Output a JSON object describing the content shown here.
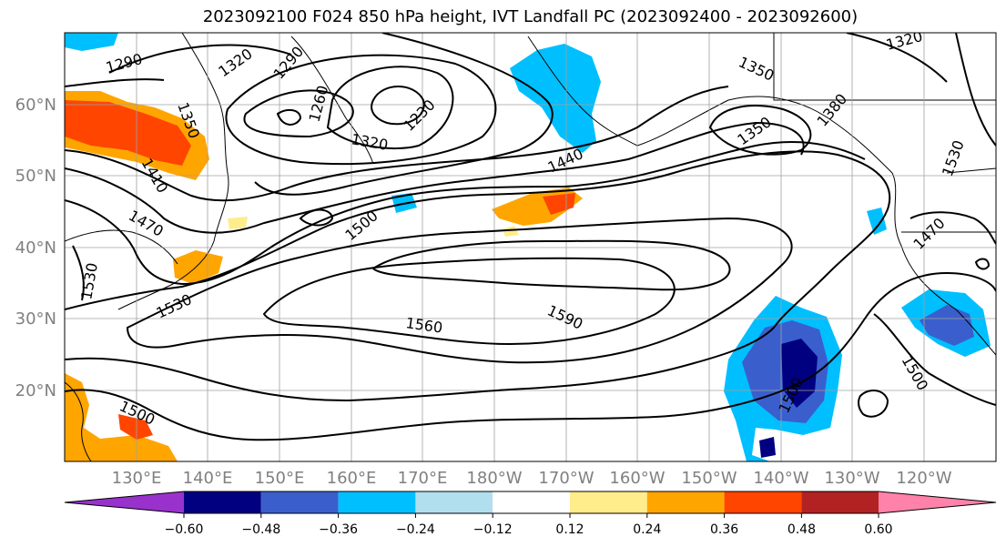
{
  "title": "2023092100 F024 850 hPa height, IVT Landfall PC (2023092400 - 2023092600)",
  "map": {
    "lon_labels": [
      "130°E",
      "140°E",
      "150°E",
      "160°E",
      "170°E",
      "180°W",
      "170°W",
      "160°W",
      "150°W",
      "140°W",
      "130°W",
      "120°W"
    ],
    "lat_labels": [
      "60°N",
      "50°N",
      "40°N",
      "30°N",
      "20°N"
    ],
    "height_contour_labels": [
      "1290",
      "1320",
      "1290",
      "1260",
      "1230",
      "1320",
      "1350",
      "1410",
      "1470",
      "1530",
      "1530",
      "1500",
      "1500",
      "1440",
      "1560",
      "1590",
      "1350",
      "1320",
      "1350",
      "1380",
      "1530",
      "1470",
      "1500",
      "1500"
    ]
  },
  "colorbar": {
    "ticks": [
      "−0.60",
      "−0.48",
      "−0.36",
      "−0.24",
      "−0.12",
      "0.12",
      "0.24",
      "0.36",
      "0.48",
      "0.60"
    ],
    "colors": [
      "#9932cc",
      "#000080",
      "#3a5fcd",
      "#00bfff",
      "#b2dfee",
      "#ffffff",
      "#ffec8b",
      "#ffa500",
      "#ff4500",
      "#b22222",
      "#ff82ab"
    ]
  }
}
